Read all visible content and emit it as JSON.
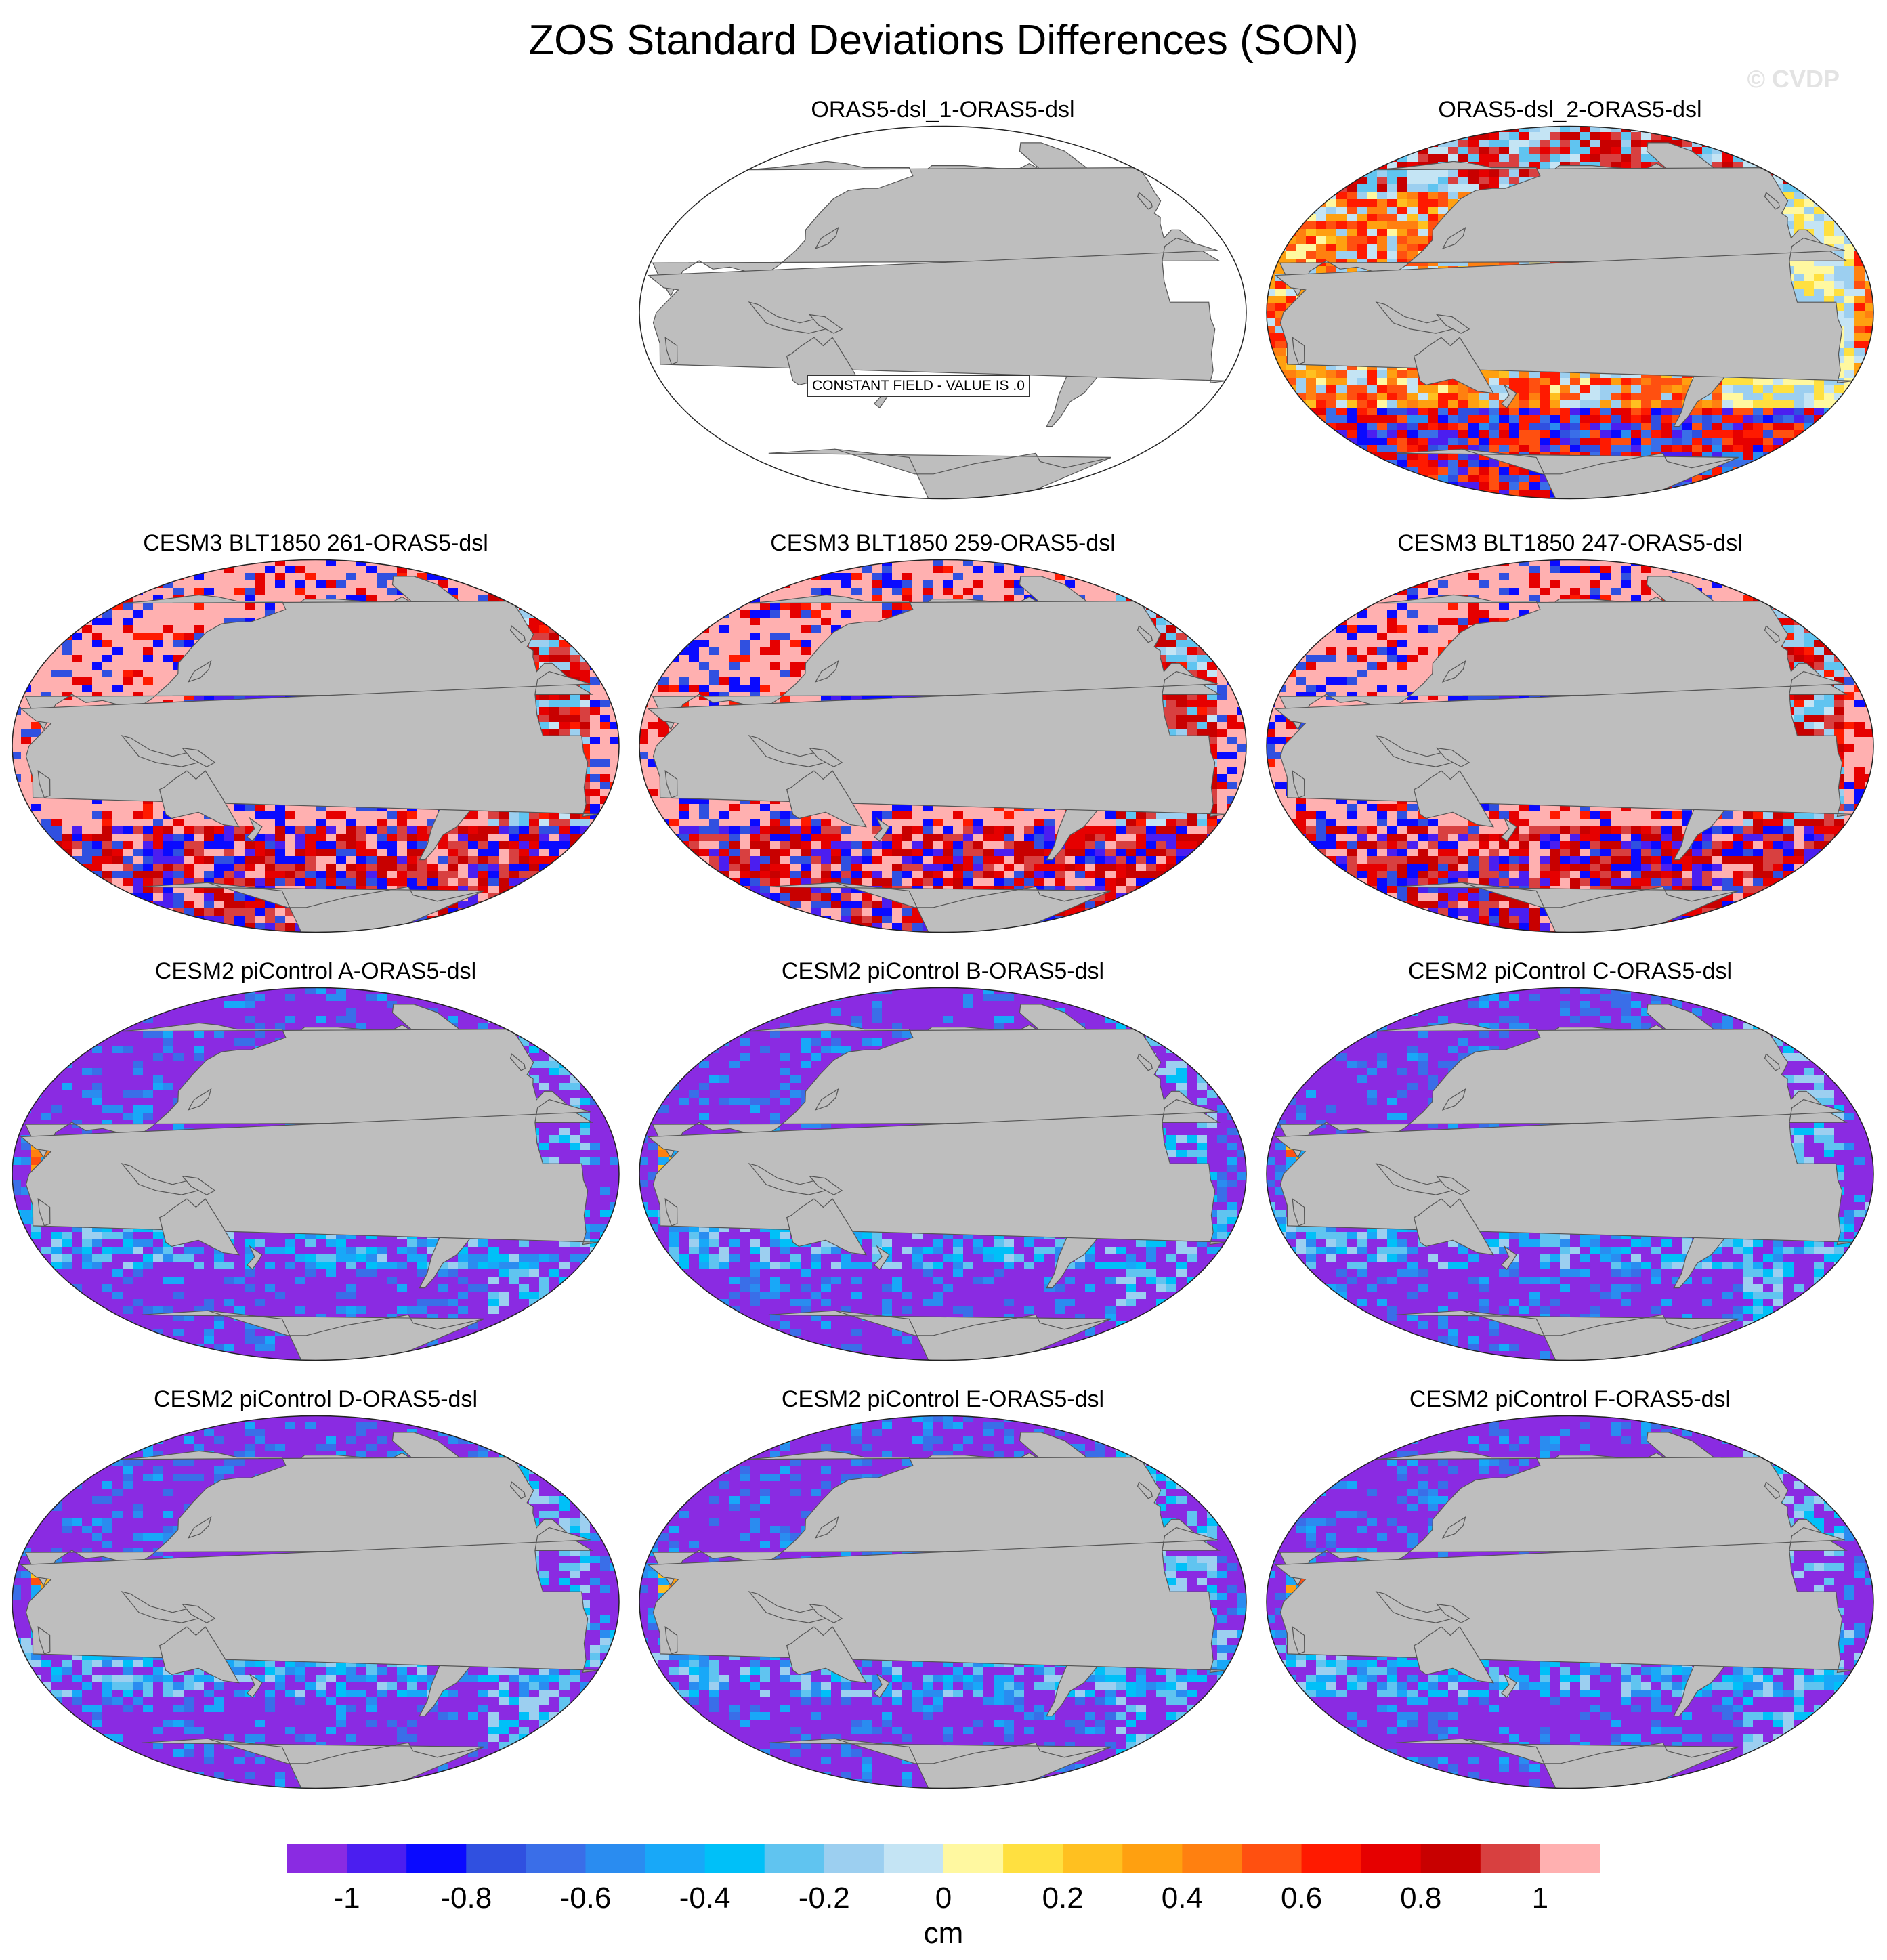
{
  "figure": {
    "title": "ZOS Standard Deviations Differences (SON)",
    "watermark": "© CVDP"
  },
  "panels": [
    {
      "label": "ORAS5-dsl_1-ORAS5-dsl",
      "note": "CONSTANT FIELD - VALUE IS .0",
      "field": "none"
    },
    {
      "label": "ORAS5-dsl_2-ORAS5-dsl",
      "field": "orasdiff"
    },
    {
      "label": "CESM3 BLT1850 261-ORAS5-dsl",
      "field": "cesm3"
    },
    {
      "label": "CESM3 BLT1850 259-ORAS5-dsl",
      "field": "cesm3"
    },
    {
      "label": "CESM3 BLT1850 247-ORAS5-dsl",
      "field": "cesm3"
    },
    {
      "label": "CESM2 piControl A-ORAS5-dsl",
      "field": "cesm2"
    },
    {
      "label": "CESM2 piControl B-ORAS5-dsl",
      "field": "cesm2"
    },
    {
      "label": "CESM2 piControl C-ORAS5-dsl",
      "field": "cesm2"
    },
    {
      "label": "CESM2 piControl D-ORAS5-dsl",
      "field": "cesm2"
    },
    {
      "label": "CESM2 piControl E-ORAS5-dsl",
      "field": "cesm2"
    },
    {
      "label": "CESM2 piControl F-ORAS5-dsl",
      "field": "cesm2"
    }
  ],
  "colors": {
    "land": "#bebebe",
    "ocean_constant": "#ffffff",
    "palette": [
      "#8a2be2",
      "#4b1ef0",
      "#0a0aff",
      "#3050e0",
      "#3a6ee8",
      "#2a8cf0",
      "#18a8f8",
      "#00c0f8",
      "#60c4f0",
      "#9ccff0",
      "#c4e4f4",
      "#fff8a0",
      "#ffe040",
      "#ffc020",
      "#ffa010",
      "#ff8010",
      "#ff5010",
      "#ff1a00",
      "#e60000",
      "#c80000",
      "#d84040",
      "#ffb0b0"
    ]
  },
  "colorbar": {
    "units": "cm",
    "ticks": [
      "-1",
      "-0.8",
      "-0.6",
      "-0.4",
      "-0.2",
      "0",
      "0.2",
      "0.4",
      "0.6",
      "0.8",
      "1"
    ]
  }
}
